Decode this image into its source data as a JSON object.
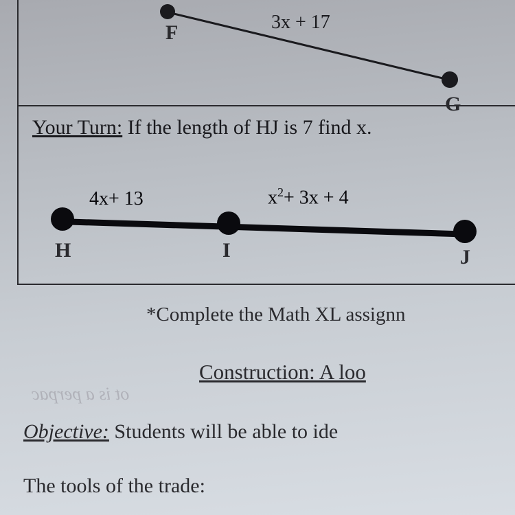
{
  "top_figure": {
    "point_f_label": "F",
    "point_g_label": "G",
    "segment_fg_expr": "3x + 17"
  },
  "your_turn": {
    "label": "Your Turn:",
    "prompt": " If the length of HJ is 7 find x."
  },
  "segment_hj": {
    "point_h_label": "H",
    "point_i_label": "I",
    "point_j_label": "J",
    "expr_hi": "4x+ 13",
    "expr_ij_pre": "x",
    "expr_ij_sup": "2",
    "expr_ij_post": "+ 3x + 4"
  },
  "note": "*Complete the Math XL assignn",
  "construction": "Construction: A loo",
  "bleed_text": "ot is a perpac",
  "objective": {
    "label": "Objective:",
    "text": " Students will be able to ide"
  },
  "tools": "The tools of the trade:",
  "colors": {
    "ink": "#1a1a1e",
    "bg_top": "#a8aab0",
    "bg_bottom": "#d8dde3"
  }
}
